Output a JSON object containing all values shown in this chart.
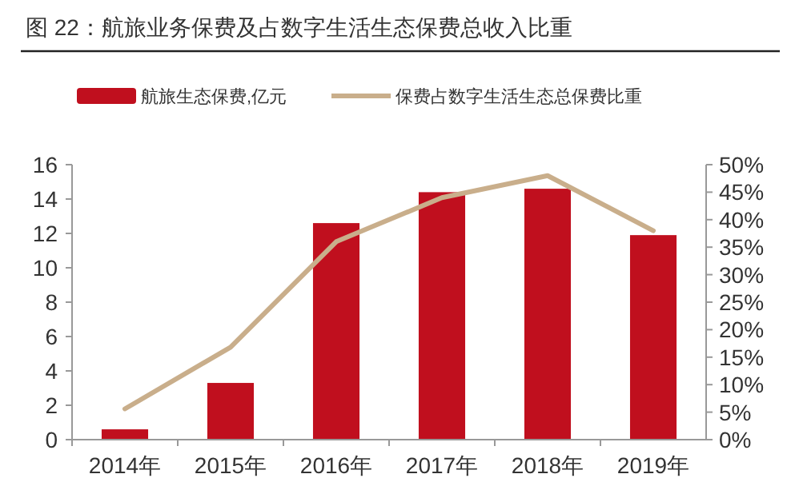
{
  "chart_data": {
    "type": "bar",
    "title": "图 22：航旅业务保费及占数字生活生态保费总收入比重",
    "categories": [
      "2014年",
      "2015年",
      "2016年",
      "2017年",
      "2018年",
      "2019年"
    ],
    "series": [
      {
        "name": "航旅生态保费,亿元",
        "color": "#c00f1e",
        "values": [
          0.6,
          3.3,
          12.6,
          14.4,
          14.6,
          11.9
        ]
      },
      {
        "name": "保费占数字生活生态总保费比重",
        "type": "line",
        "axis": "y2",
        "color": "#c9ae8b",
        "values": [
          5.6,
          16.8,
          36,
          44,
          48,
          38
        ]
      }
    ],
    "ylim": [
      0,
      16
    ],
    "yticks": [
      0,
      2,
      4,
      6,
      8,
      10,
      12,
      14,
      16
    ],
    "y2lim": [
      0,
      50
    ],
    "y2ticks": [
      {
        "value": 0,
        "label": "0%"
      },
      {
        "value": 5,
        "label": "5%"
      },
      {
        "value": 10,
        "label": "10%"
      },
      {
        "value": 15,
        "label": "15%"
      },
      {
        "value": 20,
        "label": "20%"
      },
      {
        "value": 25,
        "label": "25%"
      },
      {
        "value": 30,
        "label": "30%"
      },
      {
        "value": 35,
        "label": "35%"
      },
      {
        "value": 40,
        "label": "40%"
      },
      {
        "value": 45,
        "label": "45%"
      },
      {
        "value": 50,
        "label": "50%"
      }
    ],
    "legend": "top",
    "marker": "none",
    "line_style": "solid",
    "grid": false
  }
}
